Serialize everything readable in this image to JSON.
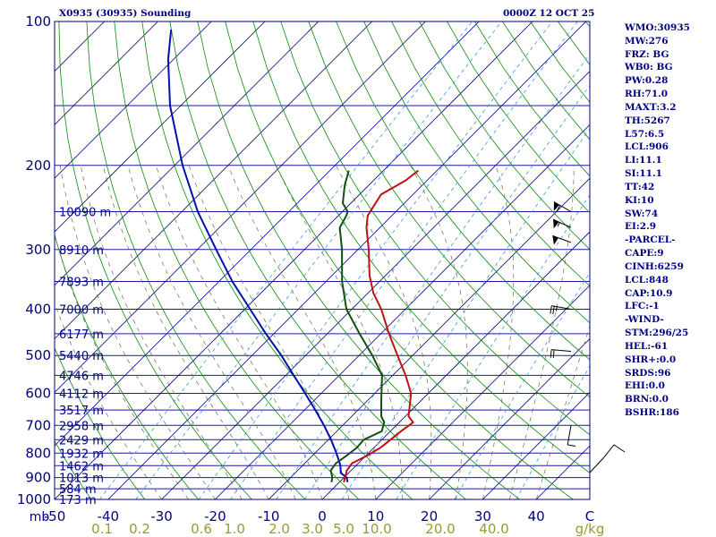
{
  "header": {
    "station_title": "X0935 (30935) Sounding",
    "valid_time": "0000Z 12 OCT 25"
  },
  "stats": [
    "WMO:30935",
    "MW:276",
    "FRZ: BG",
    "WB0: BG",
    "PW:0.28",
    "RH:71.0",
    "MAXT:3.2",
    "TH:5267",
    "L57:6.5",
    "LCL:906",
    "LI:11.1",
    "SI:11.1",
    "TT:42",
    "KI:10",
    "SW:74",
    "EI:2.9",
    "-PARCEL-",
    "CAPE:9",
    "CINH:6259",
    "LCL:848",
    "CAP:10.9",
    "LFC:-1",
    "-WIND-",
    "STM:296/25",
    "HEL:-61",
    "SHR+:0.0",
    "SRDS:96",
    "EHI:0.0",
    "BRN:0.0",
    "BSHR:186"
  ],
  "colors": {
    "isobar": "#1a1aa0",
    "isotherm": "#000080",
    "dry_adiabat": "#0a8a0a",
    "moist_adiabat": "#6a6a50",
    "mixing_ratio": "#3a9ad8",
    "temperature": "#c01010",
    "dewpoint": "#105010",
    "parcel": "#0010b0",
    "label": "#000080",
    "mixing_label": "#9a9a30"
  },
  "chart_data": {
    "type": "skewt-logp",
    "p_range": [
      100,
      1000
    ],
    "t_range_bottom": [
      -50,
      50
    ],
    "pressure_labels": [
      "100",
      "200",
      "300",
      "400",
      "500",
      "600",
      "700",
      "800",
      "900",
      "1000"
    ],
    "pressure_levels": [
      100,
      200,
      300,
      400,
      500,
      600,
      700,
      800,
      900,
      1000
    ],
    "temperature_ticks": [
      -50,
      -40,
      -30,
      -20,
      -10,
      0,
      10,
      20,
      30,
      40,
      50
    ],
    "temperature_tick_labels": [
      "-50",
      "-40",
      "-30",
      "-20",
      "-10",
      "0",
      "10",
      "20",
      "30",
      "40",
      "C"
    ],
    "pressure_axis_unit": "mb",
    "height_labels": [
      {
        "p": 250,
        "label": "10090 m"
      },
      {
        "p": 300,
        "label": "8910 m"
      },
      {
        "p": 350,
        "label": "7893 m"
      },
      {
        "p": 400,
        "label": "7000 m"
      },
      {
        "p": 450,
        "label": "6177 m"
      },
      {
        "p": 500,
        "label": "5440 m"
      },
      {
        "p": 550,
        "label": "4746 m"
      },
      {
        "p": 600,
        "label": "4112 m"
      },
      {
        "p": 650,
        "label": "3517 m"
      },
      {
        "p": 700,
        "label": "2958 m"
      },
      {
        "p": 750,
        "label": "2429 m"
      },
      {
        "p": 800,
        "label": "1932 m"
      },
      {
        "p": 850,
        "label": "1462 m"
      },
      {
        "p": 900,
        "label": "1013 m"
      },
      {
        "p": 950,
        "label": "584 m"
      },
      {
        "p": 1000,
        "label": "173 m"
      }
    ],
    "mixing_ratio_labels": [
      "0.1",
      "0.2",
      "0.6",
      "1.0",
      "2.0",
      "3.0",
      "5.0",
      "10.0",
      "20.0",
      "40.0"
    ],
    "mixing_ratio_unit": "g/kg",
    "temperature_profile": [
      {
        "p": 920,
        "t": 0.8
      },
      {
        "p": 900,
        "t": 0.2
      },
      {
        "p": 870,
        "t": -0.8
      },
      {
        "p": 840,
        "t": -1.2
      },
      {
        "p": 810,
        "t": 0.2
      },
      {
        "p": 780,
        "t": 1.2
      },
      {
        "p": 750,
        "t": 1.6
      },
      {
        "p": 720,
        "t": 2.0
      },
      {
        "p": 690,
        "t": 2.6
      },
      {
        "p": 670,
        "t": 0.6
      },
      {
        "p": 600,
        "t": -3.2
      },
      {
        "p": 550,
        "t": -7.6
      },
      {
        "p": 500,
        "t": -12.8
      },
      {
        "p": 450,
        "t": -18.5
      },
      {
        "p": 400,
        "t": -24.5
      },
      {
        "p": 370,
        "t": -29.0
      },
      {
        "p": 340,
        "t": -33.0
      },
      {
        "p": 300,
        "t": -38.0
      },
      {
        "p": 270,
        "t": -42.5
      },
      {
        "p": 255,
        "t": -44.5
      },
      {
        "p": 250,
        "t": -44.8
      },
      {
        "p": 230,
        "t": -46.0
      },
      {
        "p": 215,
        "t": -44.0
      },
      {
        "p": 205,
        "t": -43.5
      }
    ],
    "dewpoint_profile": [
      {
        "p": 920,
        "t": -1.5
      },
      {
        "p": 900,
        "t": -2.2
      },
      {
        "p": 870,
        "t": -3.8
      },
      {
        "p": 840,
        "t": -4.2
      },
      {
        "p": 810,
        "t": -3.6
      },
      {
        "p": 780,
        "t": -3.2
      },
      {
        "p": 750,
        "t": -3.4
      },
      {
        "p": 720,
        "t": -1.6
      },
      {
        "p": 690,
        "t": -2.8
      },
      {
        "p": 670,
        "t": -4.5
      },
      {
        "p": 620,
        "t": -7.5
      },
      {
        "p": 550,
        "t": -12.0
      },
      {
        "p": 500,
        "t": -17.5
      },
      {
        "p": 450,
        "t": -24.0
      },
      {
        "p": 400,
        "t": -31.0
      },
      {
        "p": 350,
        "t": -37.0
      },
      {
        "p": 300,
        "t": -43.0
      },
      {
        "p": 270,
        "t": -47.5
      },
      {
        "p": 255,
        "t": -48.5
      },
      {
        "p": 250,
        "t": -49.0
      },
      {
        "p": 240,
        "t": -51.5
      },
      {
        "p": 220,
        "t": -54.5
      },
      {
        "p": 205,
        "t": -56.5
      }
    ],
    "parcel_profile": [
      {
        "p": 920,
        "t": 1.5
      },
      {
        "p": 900,
        "t": 0.5
      },
      {
        "p": 880,
        "t": -1.5
      },
      {
        "p": 848,
        "t": -3.0
      },
      {
        "p": 800,
        "t": -6.0
      },
      {
        "p": 750,
        "t": -9.5
      },
      {
        "p": 700,
        "t": -13.5
      },
      {
        "p": 650,
        "t": -18.0
      },
      {
        "p": 600,
        "t": -23.0
      },
      {
        "p": 550,
        "t": -28.5
      },
      {
        "p": 500,
        "t": -34.5
      },
      {
        "p": 450,
        "t": -41.5
      },
      {
        "p": 400,
        "t": -49.0
      },
      {
        "p": 350,
        "t": -57.5
      },
      {
        "p": 300,
        "t": -66.5
      },
      {
        "p": 250,
        "t": -77.0
      },
      {
        "p": 200,
        "t": -88.5
      },
      {
        "p": 150,
        "t": -102.0
      },
      {
        "p": 120,
        "t": -111.0
      },
      {
        "p": 104,
        "t": -116.0
      }
    ],
    "wind_barbs": [
      {
        "p": 250,
        "dir": 300,
        "spd": 60
      },
      {
        "p": 270,
        "dir": 295,
        "spd": 55
      },
      {
        "p": 290,
        "dir": 290,
        "spd": 50
      },
      {
        "p": 400,
        "dir": 280,
        "spd": 25
      },
      {
        "p": 490,
        "dir": 275,
        "spd": 20
      },
      {
        "p": 700,
        "dir": 190,
        "spd": 10
      }
    ],
    "hodograph_note": "small hodograph trace at right edge"
  }
}
